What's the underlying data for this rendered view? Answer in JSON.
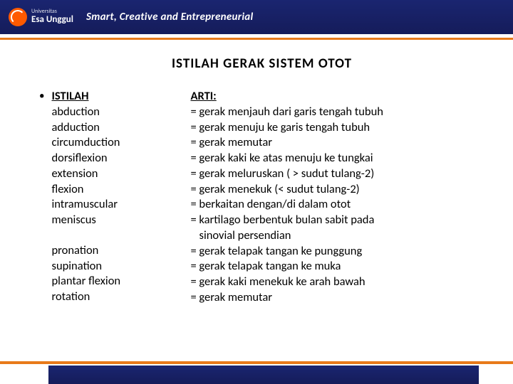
{
  "header": {
    "logo_line1": "Universitas",
    "logo_line2": "Esa Unggul",
    "tagline": "Smart, Creative and Entrepreneurial"
  },
  "title": "ISTILAH  GERAK  SISTEM  OTOT",
  "table": {
    "left_header": "ISTILAH",
    "right_header": "ARTI:",
    "group1": [
      {
        "term": "abduction",
        "def": "= gerak menjauh dari garis tengah tubuh"
      },
      {
        "term": "adduction",
        "def": "= gerak menuju ke garis tengah tubuh"
      },
      {
        "term": "circumduction",
        "def": "= gerak memutar"
      },
      {
        "term": "dorsiflexion",
        "def": "= gerak kaki ke atas menuju ke tungkai"
      },
      {
        "term": "extension",
        "def": "= gerak meluruskan ( > sudut tulang-2)"
      },
      {
        "term": "flexion",
        "def": "= gerak menekuk (< sudut tulang-2)"
      },
      {
        "term": "intramuscular",
        "def": "= berkaitan dengan/di dalam otot"
      },
      {
        "term": "meniscus",
        "def": "= kartilago berbentuk bulan sabit pada"
      }
    ],
    "group1_cont": "sinovial persendian",
    "group2": [
      {
        "term": "pronation",
        "def": "= gerak telapak tangan ke punggung"
      },
      {
        "term": "supination",
        "def": "= gerak telapak tangan ke muka"
      },
      {
        "term": "plantar flexion",
        "def": "= gerak kaki menekuk ke arah bawah"
      },
      {
        "term": "rotation",
        "def": "= gerak memutar"
      }
    ]
  }
}
